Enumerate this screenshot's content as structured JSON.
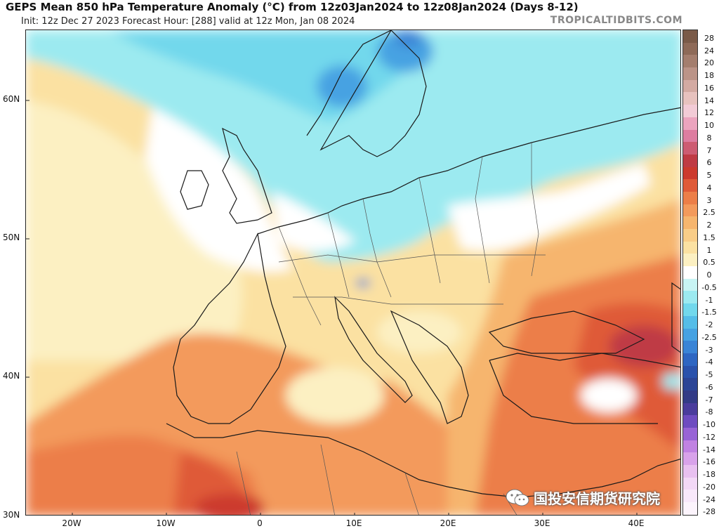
{
  "header": {
    "title": "GEPS Mean 850 hPa Temperature Anomaly (°C) from 12z03Jan2024 to 12z08Jan2024 (Days 8-12)",
    "subtitle": "Init: 12z Dec 27 2023   Forecast Hour: [288]   valid at 12z Mon, Jan 08 2024",
    "credit": "TROPICALTIDBITS.COM"
  },
  "map": {
    "lat_labels": [
      "60N",
      "50N",
      "40N",
      "30N"
    ],
    "lon_labels": [
      "20W",
      "10W",
      "0",
      "10E",
      "20E",
      "30E",
      "40E"
    ],
    "colors": {
      "land_line": "#1a1a1a",
      "border": "#555555"
    }
  },
  "colorbar": {
    "labels": [
      "28",
      "24",
      "20",
      "18",
      "16",
      "14",
      "12",
      "10",
      "8",
      "7",
      "6",
      "5",
      "4",
      "3",
      "2.5",
      "2",
      "1.5",
      "1",
      "0.5",
      "0",
      "-0.5",
      "-1",
      "-1.5",
      "-2",
      "-2.5",
      "-3",
      "-4",
      "-5",
      "-6",
      "-7",
      "-8",
      "-10",
      "-12",
      "-14",
      "-16",
      "-18",
      "-20",
      "-24",
      "-28"
    ],
    "colors": [
      "#7a5a48",
      "#8e6a58",
      "#a47e6e",
      "#bb9488",
      "#d3aaa2",
      "#e7c2be",
      "#f2cbd6",
      "#eba4be",
      "#dd7da0",
      "#cd5c72",
      "#bf3b44",
      "#cc3a2e",
      "#df5a38",
      "#ec7e48",
      "#f39a5c",
      "#f6b56e",
      "#f9cd88",
      "#fbe1a2",
      "#fcf0c2",
      "#ffffff",
      "#c8f4f4",
      "#9ceaf0",
      "#72d8ec",
      "#55bde8",
      "#46a2e2",
      "#3a84d6",
      "#2e66c2",
      "#2a52ac",
      "#2c4596",
      "#333b86",
      "#4a3c9c",
      "#6e4cc0",
      "#9864d6",
      "#c082e2",
      "#d8a2ea",
      "#e8c0f0",
      "#f2d8f6",
      "#f8e8fa",
      "#fcf4fc"
    ]
  },
  "watermark": {
    "text": "国投安信期货研究院"
  }
}
